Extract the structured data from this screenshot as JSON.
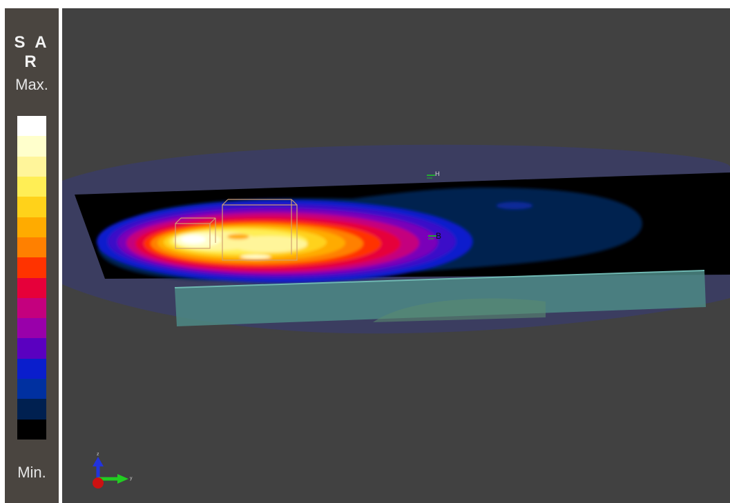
{
  "legend": {
    "title": "S A R",
    "max_label": "Max.",
    "min_label": "Min.",
    "scale_colors": [
      "#ffffff",
      "#ffffcc",
      "#fff59a",
      "#ffee55",
      "#ffd21a",
      "#ffab00",
      "#ff8000",
      "#ff3300",
      "#e6003a",
      "#c4007e",
      "#9900aa",
      "#5a00c0",
      "#0a1ecc",
      "#0030a0",
      "#002050",
      "#000000"
    ]
  },
  "viewport": {
    "background": "#414141",
    "probe_labels": {
      "top": "H",
      "right": "B"
    },
    "axes": {
      "y_label": "y",
      "z_label": "z"
    }
  }
}
